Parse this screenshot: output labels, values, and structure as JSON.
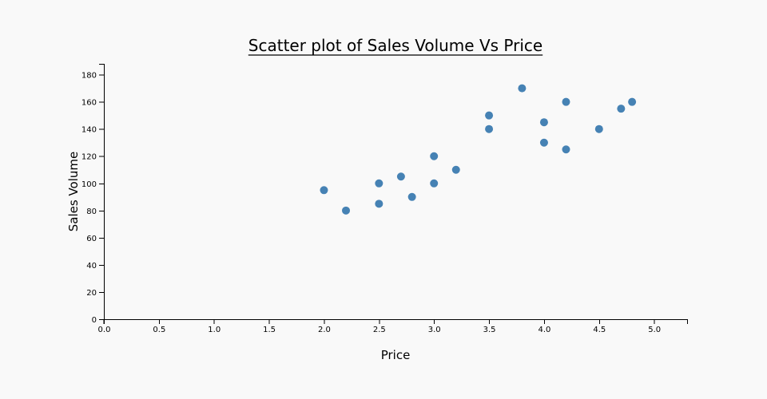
{
  "chart_data": {
    "type": "scatter",
    "title": "Scatter plot of Sales Volume Vs Price",
    "xlabel": "Price",
    "ylabel": "Sales Volume",
    "xlim": [
      0,
      5.3
    ],
    "ylim": [
      0,
      188
    ],
    "x_ticks": [
      "0.0",
      "0.5",
      "1.0",
      "1.5",
      "2.0",
      "2.5",
      "3.0",
      "3.5",
      "4.0",
      "4.5",
      "5.0"
    ],
    "y_ticks": [
      "0",
      "20",
      "40",
      "60",
      "80",
      "100",
      "120",
      "140",
      "160",
      "180"
    ],
    "grid": false,
    "point_color": "#4682b4",
    "series": [
      {
        "points": [
          {
            "x": 2.0,
            "y": 95
          },
          {
            "x": 2.2,
            "y": 80
          },
          {
            "x": 2.5,
            "y": 85
          },
          {
            "x": 2.5,
            "y": 100
          },
          {
            "x": 2.7,
            "y": 105
          },
          {
            "x": 2.8,
            "y": 90
          },
          {
            "x": 3.0,
            "y": 100
          },
          {
            "x": 3.0,
            "y": 120
          },
          {
            "x": 3.2,
            "y": 110
          },
          {
            "x": 3.5,
            "y": 140
          },
          {
            "x": 3.5,
            "y": 150
          },
          {
            "x": 3.8,
            "y": 170
          },
          {
            "x": 4.0,
            "y": 130
          },
          {
            "x": 4.0,
            "y": 145
          },
          {
            "x": 4.2,
            "y": 125
          },
          {
            "x": 4.2,
            "y": 160
          },
          {
            "x": 4.5,
            "y": 140
          },
          {
            "x": 4.7,
            "y": 155
          },
          {
            "x": 4.8,
            "y": 160
          }
        ]
      }
    ]
  }
}
